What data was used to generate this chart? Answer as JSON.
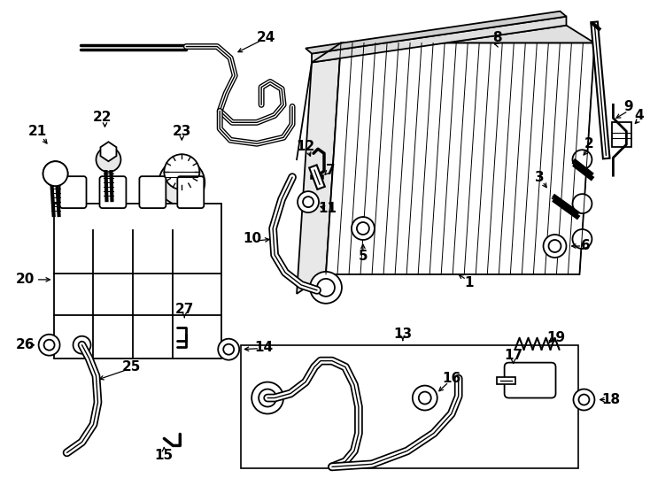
{
  "bg_color": "#ffffff",
  "line_color": "#000000",
  "lw": 1.3,
  "label_fs": 11,
  "figsize": [
    7.34,
    5.4
  ],
  "dpi": 100
}
